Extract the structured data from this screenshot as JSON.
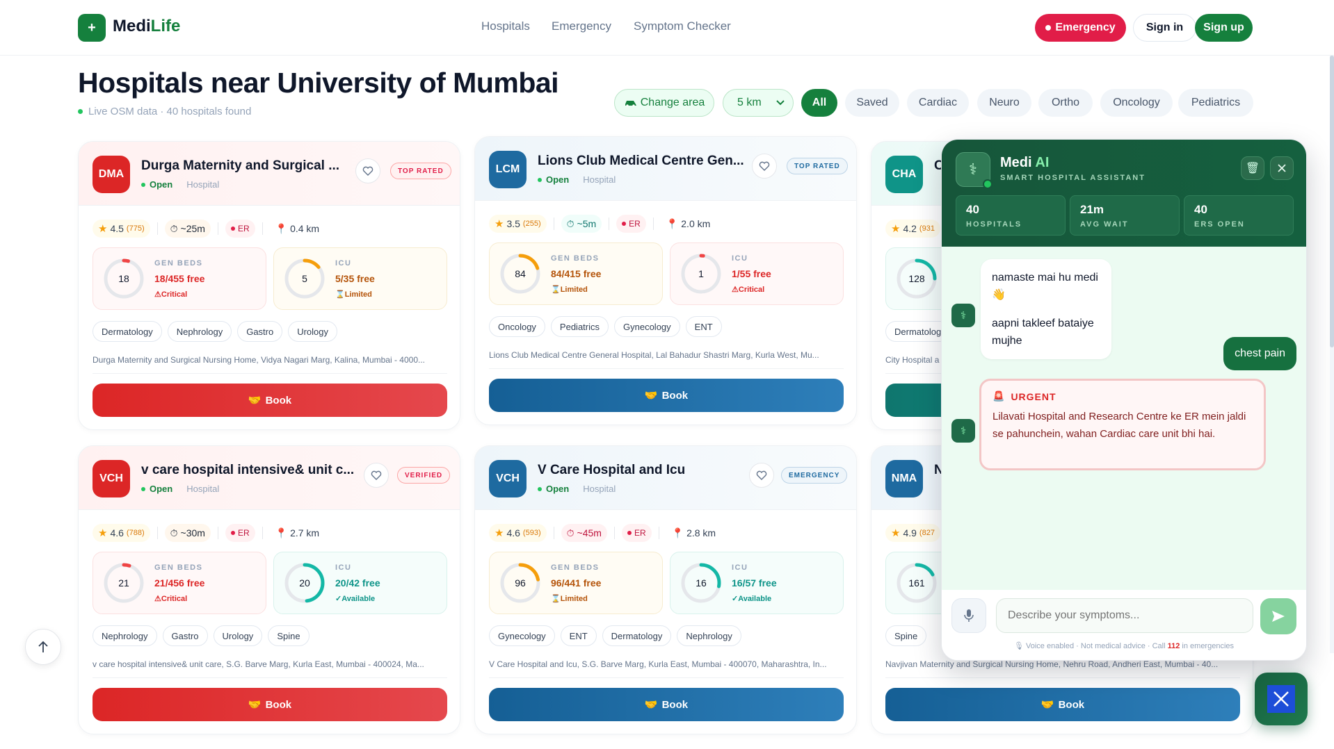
{
  "brand": {
    "logo_glyph": "+",
    "name_part1": "Medi",
    "name_part2": "Life",
    "color": "#15803d"
  },
  "nav": {
    "hospitals": "Hospitals",
    "emergency": "Emergency",
    "symptom_checker": "Symptom Checker"
  },
  "header_actions": {
    "emergency": "Emergency",
    "signin": "Sign in",
    "signup": "Sign up"
  },
  "page": {
    "title": "Hospitals near University of Mumbai",
    "subtitle": "Live OSM data · 40 hospitals found"
  },
  "filters": {
    "change_area": "Change area",
    "radius": "5 km",
    "chips": [
      "All",
      "Saved",
      "Cardiac",
      "Neuro",
      "Ortho",
      "Oncology",
      "Pediatrics"
    ],
    "active": "All"
  },
  "cards": [
    {
      "abbr": "DMA",
      "name": "Durga Maternity and Surgical ...",
      "status": "Open",
      "type": "Hospital",
      "badge": "TOP RATED",
      "rating": "4.5",
      "reviews": "(775)",
      "wait": "~25m",
      "er": "ER",
      "distance": "0.4 km",
      "gen": {
        "value": "18",
        "label": "GEN BEDS",
        "free": "18/455 free",
        "status": "Critical",
        "fraction": 0.04
      },
      "icu": {
        "value": "5",
        "label": "ICU",
        "free": "5/35 free",
        "status": "Limited",
        "fraction": 0.14
      },
      "tags": [
        "Dermatology",
        "Nephrology",
        "Gastro",
        "Urology"
      ],
      "address": "Durga Maternity and Surgical Nursing Home, Vidya Nagari Marg, Kalina, Mumbai - 4000...",
      "book": "Book"
    },
    {
      "abbr": "LCM",
      "name": "Lions Club Medical Centre Gen...",
      "status": "Open",
      "type": "Hospital",
      "badge": "TOP RATED",
      "rating": "3.5",
      "reviews": "(255)",
      "wait": "~5m",
      "er": "ER",
      "distance": "2.0 km",
      "gen": {
        "value": "84",
        "label": "GEN BEDS",
        "free": "84/415 free",
        "status": "Limited",
        "fraction": 0.2
      },
      "icu": {
        "value": "1",
        "label": "ICU",
        "free": "1/55 free",
        "status": "Critical",
        "fraction": 0.02
      },
      "tags": [
        "Oncology",
        "Pediatrics",
        "Gynecology",
        "ENT"
      ],
      "address": "Lions Club Medical Centre General Hospital, Lal Bahadur Shastri Marg, Kurla West, Mu...",
      "book": "Book"
    },
    {
      "abbr": "CHA",
      "name": "C",
      "rating": "4.2",
      "reviews": "(931",
      "gen": {
        "value": "128"
      },
      "tags": [
        "Dermatolog"
      ],
      "address": "City Hospital a"
    },
    {
      "abbr": "VCH",
      "name": "v care hospital intensive& unit c...",
      "status": "Open",
      "type": "Hospital",
      "badge": "VERIFIED",
      "rating": "4.6",
      "reviews": "(788)",
      "wait": "~30m",
      "er": "ER",
      "distance": "2.7 km",
      "gen": {
        "value": "21",
        "label": "GEN BEDS",
        "free": "21/456 free",
        "status": "Critical",
        "fraction": 0.05
      },
      "icu": {
        "value": "20",
        "label": "ICU",
        "free": "20/42 free",
        "status": "Available",
        "fraction": 0.48
      },
      "tags": [
        "Nephrology",
        "Gastro",
        "Urology",
        "Spine"
      ],
      "address": "v care hospital intensive& unit care, S.G. Barve Marg, Kurla East, Mumbai - 400024, Ma...",
      "book": "Book"
    },
    {
      "abbr": "VCH",
      "name": "V Care Hospital and Icu",
      "status": "Open",
      "type": "Hospital",
      "badge": "EMERGENCY",
      "rating": "4.6",
      "reviews": "(593)",
      "wait": "~45m",
      "er": "ER",
      "distance": "2.8 km",
      "gen": {
        "value": "96",
        "label": "GEN BEDS",
        "free": "96/441 free",
        "status": "Limited",
        "fraction": 0.22
      },
      "icu": {
        "value": "16",
        "label": "ICU",
        "free": "16/57 free",
        "status": "Available",
        "fraction": 0.28
      },
      "tags": [
        "Gynecology",
        "ENT",
        "Dermatology",
        "Nephrology"
      ],
      "address": "V Care Hospital and Icu, S.G. Barve Marg, Kurla East, Mumbai - 400070, Maharashtra, In...",
      "book": "Book"
    },
    {
      "abbr": "NMA",
      "name": "N",
      "rating": "4.9",
      "reviews": "(827",
      "gen": {
        "value": "161"
      },
      "tags": [
        "Spine"
      ],
      "address": "Navjivan Maternity and Surgical Nursing Home, Nehru Road, Andheri East, Mumbai - 40...",
      "book": "Book"
    }
  ],
  "chat": {
    "title_part1": "Medi",
    "title_part2": "AI",
    "subtitle": "SMART HOSPITAL ASSISTANT",
    "stats": [
      {
        "value": "40",
        "label": "HOSPITALS"
      },
      {
        "value": "21m",
        "label": "AVG WAIT"
      },
      {
        "value": "40",
        "label": "ERS OPEN"
      }
    ],
    "messages": {
      "bot_greeting_1": "namaste mai hu medi 👋",
      "bot_greeting_2": "aapni takleef bataiye mujhe",
      "user_1": "chest pain",
      "urgent_label": "URGENT",
      "urgent_text": "Lilavati Hospital and Research Centre ke ER mein jaldi se pahunchein, wahan Cardiac care unit bhi hai."
    },
    "input_placeholder": "Describe your symptoms...",
    "footer": {
      "voice": "Voice enabled · Not medical advice · Call ",
      "number": "112",
      "suffix": " in emergencies"
    }
  }
}
